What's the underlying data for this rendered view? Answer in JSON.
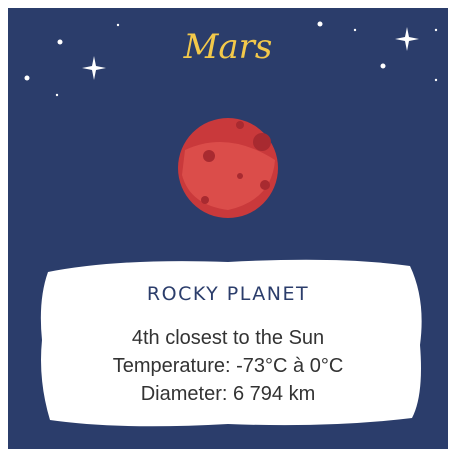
{
  "card": {
    "title": "Mars",
    "subtitle": "ROCKY PLANET",
    "facts": [
      "4th closest to the Sun",
      "Temperature: -73°C à 0°C",
      "Diameter: 6 794 km"
    ]
  }
}
